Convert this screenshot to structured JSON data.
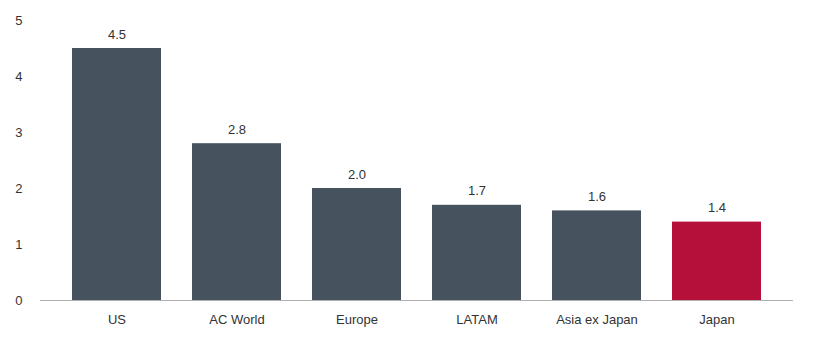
{
  "chart_data": {
    "type": "bar",
    "categories": [
      "US",
      "AC World",
      "Europe",
      "LATAM",
      "Asia ex Japan",
      "Japan"
    ],
    "values": [
      4.5,
      2.8,
      2.0,
      1.7,
      1.6,
      1.4
    ],
    "value_labels": [
      "4.5",
      "2.8",
      "2.0",
      "1.7",
      "1.6",
      "1.4"
    ],
    "colors": [
      "#46535e",
      "#46535e",
      "#46535e",
      "#46535e",
      "#46535e",
      "#b5103a"
    ],
    "ylim": [
      0,
      5
    ],
    "yticks": [
      0,
      1,
      2,
      3,
      4,
      5
    ],
    "grid": false,
    "data_labels": true
  }
}
